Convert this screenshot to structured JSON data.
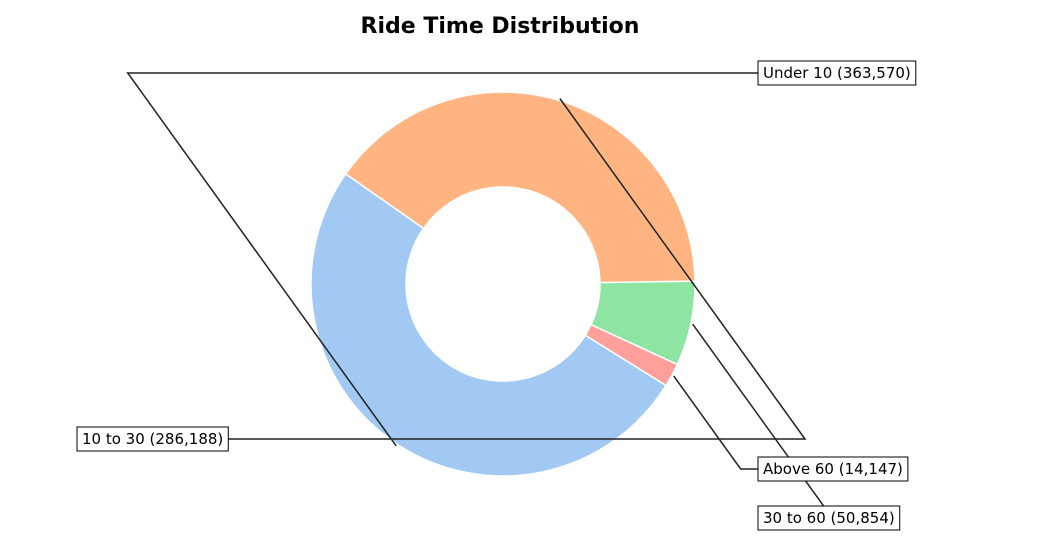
{
  "chart_data": {
    "type": "pie",
    "title": "Ride Time Distribution",
    "donut": true,
    "slices": [
      {
        "label": "Under 10",
        "value": 363570,
        "display": "Under 10 (363,570)",
        "color": "#a1c9f4"
      },
      {
        "label": "Above 60",
        "value": 14147,
        "display": "Above 60 (14,147)",
        "color": "#ff9f9b"
      },
      {
        "label": "30 to 60",
        "value": 50854,
        "display": "30 to 60 (50,854)",
        "color": "#8de5a1"
      },
      {
        "label": "10 to 30",
        "value": 286188,
        "display": "10 to 30 (286,188)",
        "color": "#ffb482"
      }
    ]
  }
}
